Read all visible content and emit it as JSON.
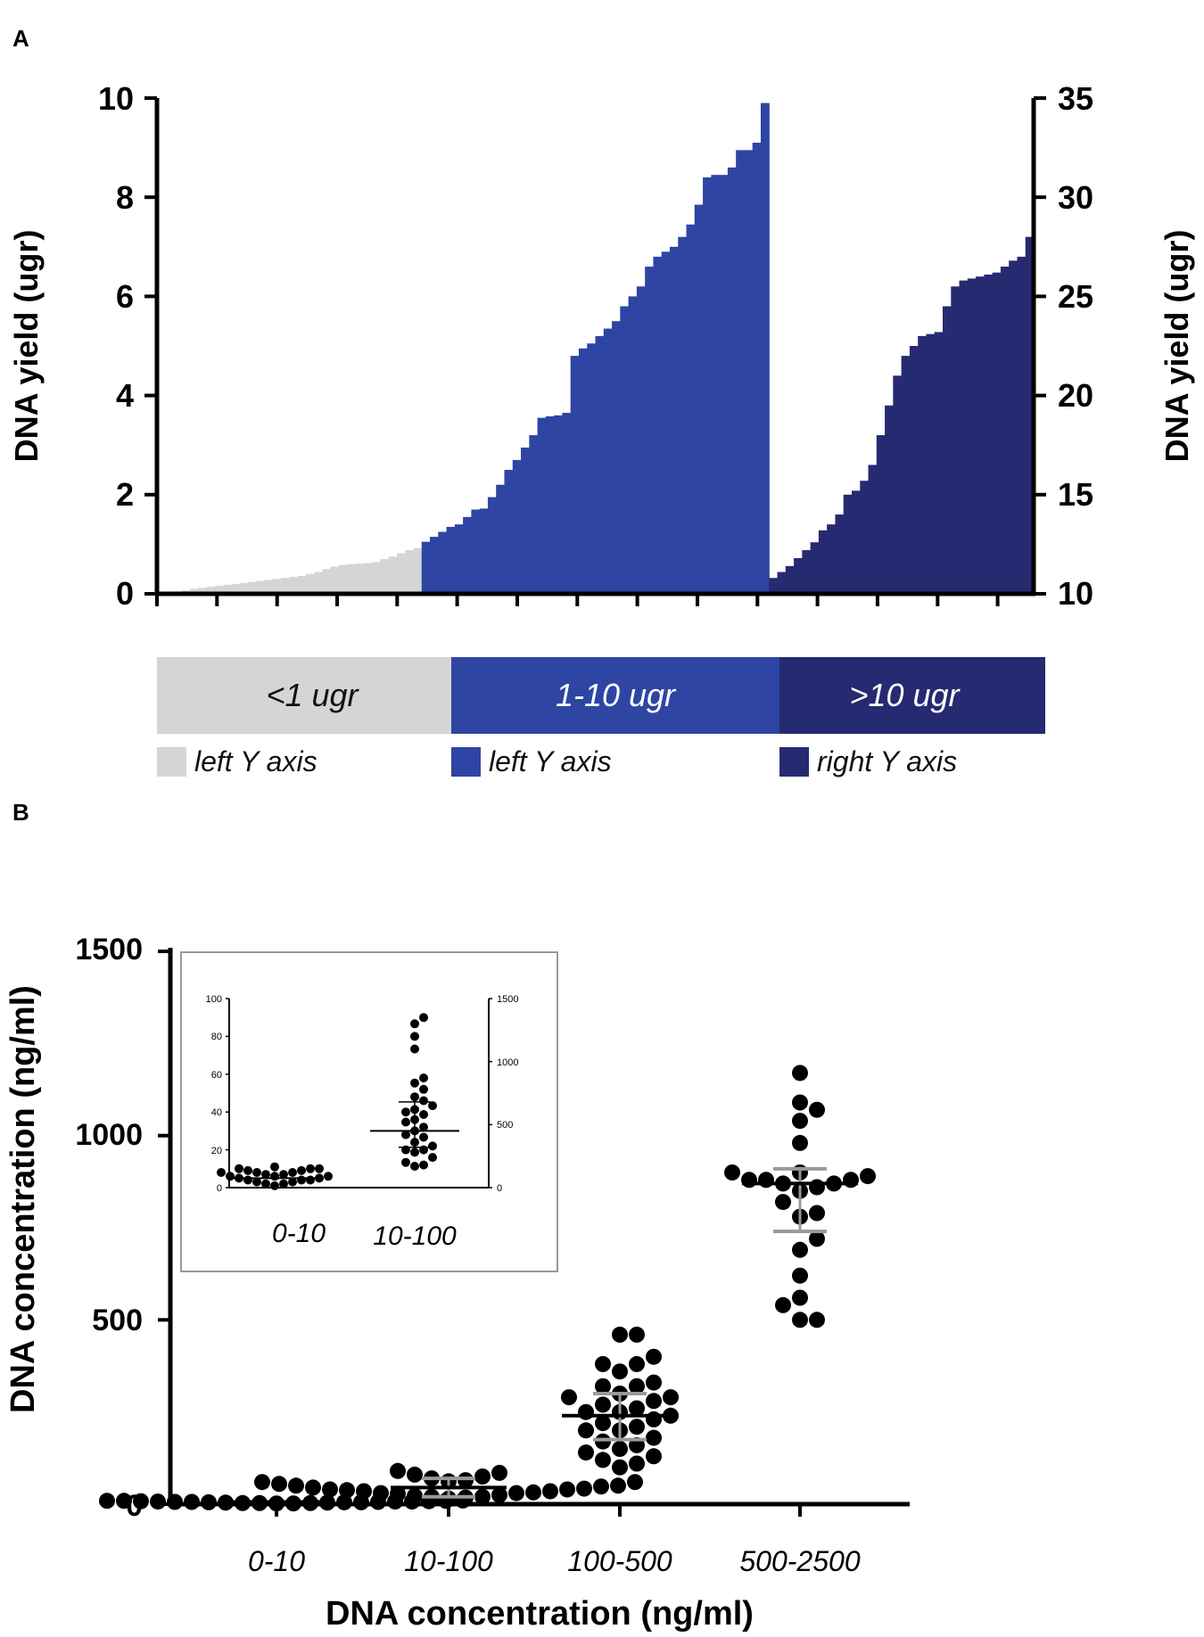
{
  "panel_a": {
    "label": "A",
    "chart_data": {
      "type": "bar",
      "ylabel_left": "DNA yield (ugr)",
      "ylabel_right": "DNA yield (ugr)",
      "ylim_left": [
        0,
        10
      ],
      "ylim_right": [
        10,
        35
      ],
      "yticks_left": [
        "0",
        "2",
        "4",
        "6",
        "8",
        "10"
      ],
      "yticks_right": [
        "10",
        "15",
        "20",
        "25",
        "30",
        "35"
      ],
      "series": [
        {
          "name": "<1 ugr",
          "axis": "left",
          "color": "#d4d6d5",
          "values": [
            0.01,
            0.03,
            0.05,
            0.07,
            0.1,
            0.12,
            0.14,
            0.16,
            0.18,
            0.2,
            0.22,
            0.24,
            0.26,
            0.28,
            0.3,
            0.32,
            0.34,
            0.36,
            0.4,
            0.44,
            0.5,
            0.55,
            0.58,
            0.6,
            0.61,
            0.62,
            0.64,
            0.7,
            0.75,
            0.82,
            0.88,
            0.92
          ]
        },
        {
          "name": "1-10 ugr",
          "axis": "left",
          "color": "#2e45a3",
          "values": [
            1.05,
            1.15,
            1.25,
            1.35,
            1.4,
            1.55,
            1.7,
            1.72,
            1.95,
            2.2,
            2.5,
            2.7,
            2.95,
            3.2,
            3.55,
            3.58,
            3.6,
            3.65,
            4.8,
            4.95,
            5.05,
            5.2,
            5.35,
            5.5,
            5.8,
            6.0,
            6.2,
            6.6,
            6.8,
            6.9,
            7.0,
            7.2,
            7.45,
            7.85,
            8.4,
            8.45,
            8.45,
            8.6,
            8.95,
            8.95,
            9.1,
            9.9
          ]
        },
        {
          "name": ">10 ugr",
          "axis": "right",
          "color": "#262a70",
          "values": [
            10.8,
            11.1,
            11.4,
            11.8,
            12.2,
            12.6,
            13.2,
            13.5,
            14.0,
            15.0,
            15.2,
            15.7,
            16.5,
            18.0,
            19.5,
            21.0,
            22.0,
            22.5,
            23.0,
            23.1,
            23.2,
            24.5,
            25.5,
            25.8,
            25.9,
            26.0,
            26.1,
            26.2,
            26.5,
            26.8,
            27.0,
            28.0
          ]
        }
      ],
      "legend": [
        {
          "band": "<1 ugr",
          "axis_note": "left Y axis",
          "color": "#d4d6d5"
        },
        {
          "band": "1-10 ugr",
          "axis_note": "left Y axis",
          "color": "#2e45a3"
        },
        {
          "band": ">10 ugr",
          "axis_note": "right Y axis",
          "color": "#262a70"
        }
      ]
    }
  },
  "panel_b": {
    "label": "B",
    "chart_data": {
      "type": "scatter",
      "xlabel": "DNA concentration (ng/ml)",
      "ylabel": "DNA concentration (ng/ml)",
      "ylim": [
        0,
        1500
      ],
      "yticks": [
        "0",
        "500",
        "1000",
        "1500"
      ],
      "categories": [
        "0-10",
        "10-100",
        "100-500",
        "500-2500"
      ],
      "groups": [
        {
          "category": "0-10",
          "mean": 6,
          "values": [
            2,
            3,
            4,
            5,
            6,
            7,
            8,
            9,
            10,
            3,
            5,
            7,
            9,
            4,
            6,
            8,
            2,
            5,
            7,
            9,
            3,
            6
          ]
        },
        {
          "category": "10-100",
          "mean": 45,
          "sd_low": 20,
          "sd_high": 70,
          "values": [
            15,
            18,
            20,
            22,
            25,
            28,
            30,
            32,
            35,
            38,
            40,
            42,
            45,
            48,
            50,
            55,
            60,
            62,
            65,
            70,
            75,
            80,
            85,
            90,
            20,
            30,
            40,
            50,
            60,
            35
          ]
        },
        {
          "category": "100-500",
          "mean": 240,
          "sd_low": 175,
          "sd_high": 300,
          "values": [
            460,
            460,
            400,
            380,
            360,
            330,
            320,
            300,
            290,
            280,
            270,
            260,
            250,
            240,
            230,
            220,
            210,
            200,
            180,
            170,
            160,
            140,
            130,
            120,
            110,
            100,
            380,
            290,
            250,
            200,
            150,
            320
          ]
        },
        {
          "category": "500-2500",
          "mean": 870,
          "sd_low": 740,
          "sd_high": 910,
          "values": [
            1170,
            1090,
            1070,
            1040,
            980,
            900,
            890,
            880,
            880,
            870,
            860,
            850,
            820,
            790,
            780,
            720,
            690,
            620,
            560,
            540,
            500,
            500,
            880,
            870,
            900
          ]
        }
      ],
      "inset": {
        "categories": [
          "0-10",
          "10-100"
        ],
        "left_ylim": [
          0,
          100
        ],
        "right_ylim": [
          0,
          1500
        ],
        "left_yticks": [
          "0",
          "20",
          "40",
          "60",
          "80",
          "100"
        ],
        "right_yticks": [
          "0",
          "500",
          "1000",
          "1500"
        ],
        "groups": [
          {
            "category": "0-10",
            "axis": "left",
            "mean": 5,
            "values": [
              1,
              2,
              3,
              3,
              4,
              4,
              5,
              5,
              6,
              6,
              7,
              7,
              8,
              8,
              9,
              9,
              10,
              10,
              11,
              2,
              4,
              6,
              8,
              10
            ]
          },
          {
            "category": "10-100",
            "axis": "right",
            "mean": 450,
            "sd_low": 320,
            "sd_high": 680,
            "values": [
              1350,
              1300,
              1200,
              1100,
              870,
              830,
              780,
              720,
              690,
              650,
              600,
              580,
              520,
              480,
              450,
              420,
              400,
              360,
              330,
              300,
              280,
              240,
              200,
              180,
              170,
              620,
              540,
              300
            ]
          }
        ]
      }
    }
  }
}
